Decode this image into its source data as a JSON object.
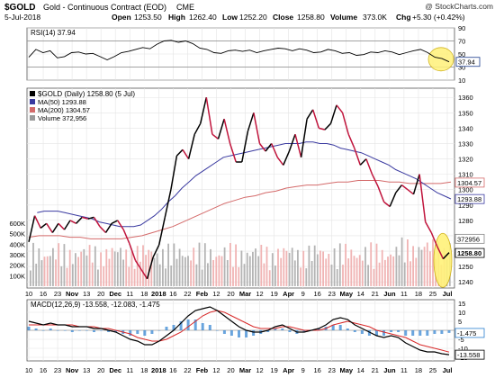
{
  "header": {
    "symbol": "$GOLD",
    "name": "Gold - Continuous Contract (EOD)",
    "exchange": "CME",
    "watermark": "@ StockCharts.com",
    "date": "5-Jul-2018",
    "open_label": "Open",
    "open_value": "1253.50",
    "high_label": "High",
    "high_value": "1262.40",
    "low_label": "Low",
    "low_value": "1252.20",
    "close_label": "Close",
    "close_value": "1258.80",
    "volume_label": "Volume",
    "volume_value": "373.0K",
    "chg_label": "Chg",
    "chg_value": "+5.30 (+0.42%)"
  },
  "colors": {
    "price": "#000000",
    "price_down": "#c0143c",
    "ma50": "#3a3aa0",
    "ma200": "#d46a6a",
    "volume_up": "#b4b4b4",
    "volume_down": "#f0b4b4",
    "rsi": "#000000",
    "macd": "#000000",
    "signal": "#d82828",
    "histogram": "#2b7fd0",
    "highlight": "#fff27a"
  },
  "chart_data": [
    {
      "type": "line",
      "panel": "RSI",
      "title": "RSI(14) 37.94",
      "values": [
        45,
        57,
        52,
        55,
        44,
        46,
        52,
        53,
        50,
        51,
        46,
        41,
        46,
        52,
        54,
        57,
        60,
        58,
        65,
        70,
        71,
        68,
        70,
        66,
        59,
        57,
        52,
        51,
        55,
        56,
        54,
        56,
        52,
        55,
        57,
        59,
        58,
        55,
        58,
        56,
        52,
        53,
        57,
        55,
        51,
        52,
        48,
        49,
        53,
        52,
        55,
        53,
        49,
        52,
        55,
        57,
        52,
        45,
        43,
        38
      ],
      "ylim": [
        10,
        90
      ],
      "ticks": [
        10,
        30,
        50,
        70,
        90
      ],
      "reference_lines": [
        30,
        70
      ],
      "last_value_label": "37.94"
    },
    {
      "type": "line",
      "panel": "Price",
      "legend": [
        "$GOLD (Daily) 1258.80 (5 Jul)",
        "MA(50) 1293.88",
        "MA(200) 1304.57",
        "Volume 372,956"
      ],
      "x_tick_labels": [
        "10",
        "16",
        "23",
        "Nov",
        "13",
        "20",
        "Dec",
        "11",
        "18",
        "2018",
        "16",
        "22",
        "Feb",
        "12",
        "20",
        "Mar",
        "12",
        "19",
        "Apr",
        "9",
        "16",
        "23",
        "May",
        "14",
        "21",
        "Jun",
        "11",
        "18",
        "25",
        "Jul"
      ],
      "y_ticks": [
        1240,
        1250,
        1260,
        1270,
        1280,
        1290,
        1300,
        1310,
        1320,
        1330,
        1340,
        1350,
        1360
      ],
      "volume_ticks": [
        "100K",
        "200K",
        "300K",
        "400K",
        "500K",
        "600K"
      ],
      "ylim": [
        1236,
        1366
      ],
      "series": [
        {
          "name": "$GOLD (Daily)",
          "values": [
            1266,
            1283,
            1275,
            1278,
            1272,
            1278,
            1274,
            1280,
            1278,
            1282,
            1281,
            1282,
            1276,
            1272,
            1278,
            1280,
            1274,
            1265,
            1254,
            1248,
            1242,
            1256,
            1264,
            1282,
            1300,
            1322,
            1326,
            1320,
            1336,
            1343,
            1360,
            1336,
            1333,
            1346,
            1330,
            1318,
            1318,
            1338,
            1350,
            1330,
            1325,
            1330,
            1321,
            1316,
            1325,
            1336,
            1321,
            1346,
            1352,
            1340,
            1339,
            1343,
            1355,
            1350,
            1336,
            1327,
            1316,
            1320,
            1310,
            1302,
            1292,
            1289,
            1298,
            1303,
            1300,
            1297,
            1310,
            1279,
            1272,
            1263,
            1255,
            1259
          ]
        },
        {
          "name": "MA(50)",
          "values": [
            1285,
            1286,
            1286,
            1286,
            1285,
            1284,
            1283,
            1282,
            1281,
            1279,
            1278,
            1277,
            1276,
            1276,
            1276,
            1277,
            1280,
            1283,
            1287,
            1292,
            1296,
            1301,
            1305,
            1309,
            1312,
            1315,
            1318,
            1321,
            1322,
            1323,
            1324,
            1325,
            1326,
            1327,
            1328,
            1329,
            1330,
            1330,
            1330,
            1331,
            1331,
            1330,
            1330,
            1329,
            1327,
            1326,
            1325,
            1324,
            1322,
            1320,
            1318,
            1316,
            1313,
            1311,
            1309,
            1307,
            1304,
            1301,
            1298,
            1296,
            1294
          ]
        },
        {
          "name": "MA(200)",
          "values": [
            1269,
            1270,
            1270,
            1270,
            1269,
            1269,
            1268,
            1268,
            1268,
            1268,
            1269,
            1270,
            1272,
            1274,
            1276,
            1279,
            1282,
            1285,
            1288,
            1291,
            1293,
            1295,
            1296,
            1298,
            1299,
            1301,
            1302,
            1303,
            1303,
            1304,
            1305,
            1305,
            1306,
            1306,
            1306,
            1305,
            1305,
            1304,
            1304,
            1304,
            1304,
            1305
          ]
        }
      ],
      "last_labels": [
        "1304.57",
        "1293.88",
        "1258.80",
        "372956"
      ]
    },
    {
      "type": "line",
      "panel": "MACD",
      "title": "MACD(12,26,9) -13.558, -12.083, -1.475",
      "ylim": [
        -17,
        17
      ],
      "ticks": [
        -15,
        -10,
        -5,
        0,
        5,
        10,
        15
      ],
      "series": [
        {
          "name": "MACD",
          "values": [
            5,
            4,
            3,
            4,
            3,
            3,
            2,
            2,
            2,
            1,
            1,
            0,
            -1,
            -3,
            -5,
            -6,
            -8,
            -8,
            -6,
            -3,
            0,
            4,
            8,
            11,
            12,
            13,
            11,
            8,
            5,
            2,
            0,
            -1,
            -1,
            0,
            2,
            3,
            1,
            -1,
            -1,
            0,
            1,
            3,
            6,
            7,
            6,
            3,
            1,
            -1,
            -3,
            -4,
            -3,
            -4,
            -7,
            -9,
            -11,
            -12,
            -12,
            -13,
            -13.558
          ]
        },
        {
          "name": "Signal",
          "values": [
            3,
            3,
            3,
            3,
            3,
            3,
            3,
            2,
            2,
            2,
            1,
            1,
            0,
            -1,
            -2,
            -4,
            -5,
            -6,
            -6,
            -5,
            -3,
            -1,
            2,
            5,
            8,
            10,
            11,
            10,
            8,
            6,
            4,
            2,
            1,
            1,
            1,
            2,
            2,
            1,
            0,
            0,
            0,
            1,
            3,
            4,
            5,
            4,
            3,
            2,
            0,
            -1,
            -2,
            -3,
            -4,
            -6,
            -8,
            -9,
            -10,
            -11,
            -12.083
          ]
        }
      ],
      "histogram_last": "-1.475",
      "last_labels": [
        "-1.475",
        "-13.558"
      ],
      "x_tick_labels": [
        "10",
        "16",
        "23",
        "Nov",
        "13",
        "20",
        "Dec",
        "11",
        "18",
        "2018",
        "16",
        "22",
        "Feb",
        "12",
        "20",
        "Mar",
        "12",
        "19",
        "Apr",
        "9",
        "16",
        "23",
        "May",
        "14",
        "21",
        "Jun",
        "11",
        "18",
        "25",
        "Jul"
      ]
    }
  ]
}
